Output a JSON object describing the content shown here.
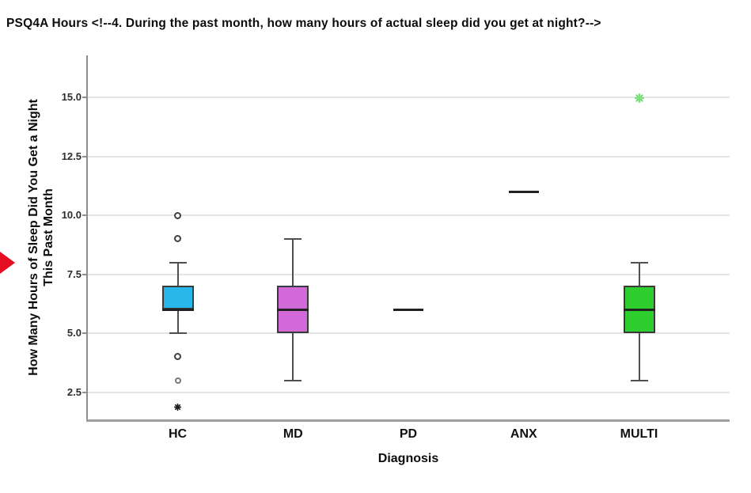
{
  "header": {
    "title": "PSQ4A Hours <!--4. During the past month, how many hours of actual sleep did you get at night?-->"
  },
  "markers": {
    "red_arrow_color": "#e60e23"
  },
  "chart_data": {
    "type": "boxplot",
    "title": "",
    "xlabel": "Diagnosis",
    "ylabel": {
      "line1": "How Many Hours of Sleep Did You Get a Night",
      "line2": "This Past Month"
    },
    "yticks": [
      "15.0",
      "12.5",
      "10.0",
      "7.5",
      "5.0",
      "2.5"
    ],
    "ylim": [
      1.3,
      16.8
    ],
    "grid": "horizontal",
    "legend": "none",
    "categories": [
      "HC",
      "MD",
      "PD",
      "ANX",
      "MULTI"
    ],
    "series": [
      {
        "category": "HC",
        "kind": "box",
        "q1": 6,
        "median": 6,
        "q3": 7,
        "whisker_low": 5,
        "whisker_high": 8,
        "fill": "#29b6e8",
        "outliers": [
          {
            "value": 10,
            "glyph": "circle"
          },
          {
            "value": 9,
            "glyph": "circle"
          },
          {
            "value": 4,
            "glyph": "circle"
          },
          {
            "value": 3,
            "glyph": "circle-light"
          },
          {
            "value": 2,
            "glyph": "star"
          }
        ]
      },
      {
        "category": "MD",
        "kind": "box",
        "q1": 5,
        "median": 6,
        "q3": 7,
        "whisker_low": 3,
        "whisker_high": 9,
        "fill": "#d169d9",
        "outliers": []
      },
      {
        "category": "PD",
        "kind": "single",
        "value": 6,
        "outliers": []
      },
      {
        "category": "ANX",
        "kind": "single",
        "value": 11,
        "outliers": []
      },
      {
        "category": "MULTI",
        "kind": "box",
        "q1": 5,
        "median": 6,
        "q3": 7,
        "whisker_low": 3,
        "whisker_high": 8,
        "fill": "#2fce2f",
        "outliers": [
          {
            "value": 15,
            "glyph": "star-green"
          }
        ]
      }
    ],
    "palette": {
      "axis": "#8d8d8d",
      "axis_bottom": "#9e9e9e",
      "gridline": "#e4e4e4",
      "box_border": "#3a3a3a",
      "median": "#222222",
      "whisker": "#4f4f4f",
      "tick_label": "#2d2d2d",
      "category_label": "#101010",
      "outlier_ring": "#3f3f3f",
      "outlier_ring_light": "#7a7a7a",
      "outlier_star": "#1e1e1e",
      "outlier_star_green": "#7be07b"
    }
  }
}
